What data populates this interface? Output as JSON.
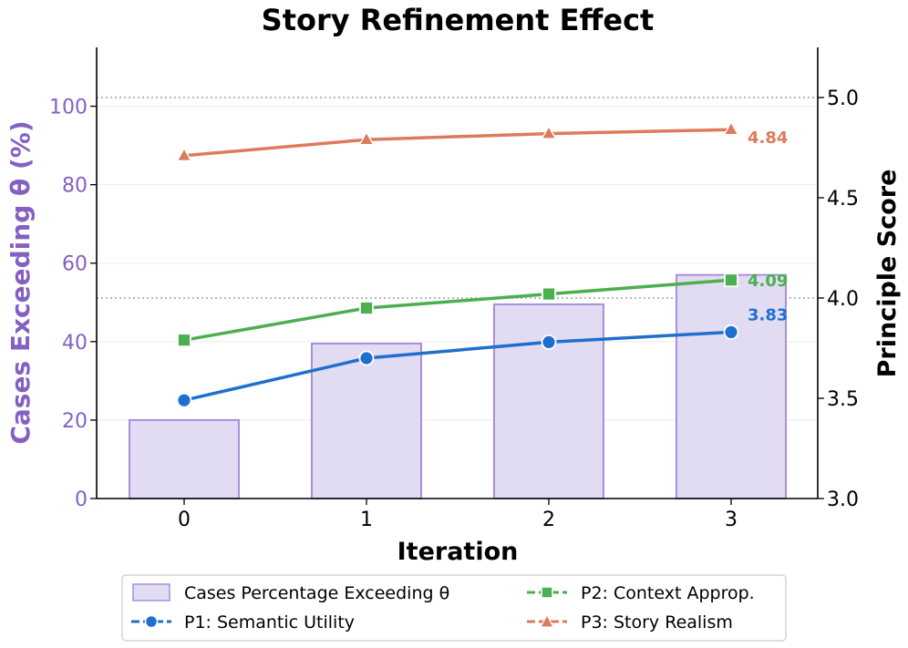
{
  "chart_data": {
    "type": "bar+line",
    "title": "Story Refinement Effect",
    "xlabel": "Iteration",
    "ylabel_left": "Cases Exceeding θ (%)",
    "ylabel_right": "Principle Score",
    "categories": [
      "0",
      "1",
      "2",
      "3"
    ],
    "ylim_left": [
      0,
      115
    ],
    "ylim_right": [
      3.0,
      5.25
    ],
    "left_ticks": [
      0,
      20,
      40,
      60,
      80,
      100
    ],
    "right_ticks": [
      3.0,
      3.5,
      4.0,
      4.5,
      5.0
    ],
    "left_tick_labels": [
      "0",
      "20",
      "40",
      "60",
      "80",
      "100"
    ],
    "right_tick_labels": [
      "3.0",
      "3.5",
      "4.0",
      "4.5",
      "5.0"
    ],
    "reference_lines_right": [
      4.0,
      5.0
    ],
    "bars": {
      "name": "Cases Percentage Exceeding θ",
      "values": [
        20,
        39.5,
        49.5,
        57
      ],
      "color": "#e2dcf3",
      "edge_color": "#a98fd8"
    },
    "series": [
      {
        "name": "P1: Semantic Utility",
        "values": [
          3.49,
          3.7,
          3.78,
          3.83
        ],
        "color": "#1f6fce",
        "marker": "circle",
        "end_label": "3.83"
      },
      {
        "name": "P2: Context Approp.",
        "values": [
          3.79,
          3.95,
          4.02,
          4.09
        ],
        "color": "#4caf50",
        "marker": "square",
        "end_label": "4.09"
      },
      {
        "name": "P3: Story Realism",
        "values": [
          4.71,
          4.79,
          4.82,
          4.84
        ],
        "color": "#dc7b5c",
        "marker": "triangle",
        "end_label": "4.84"
      }
    ],
    "left_axis_color": "#8560c4",
    "legend_position": "bottom-center"
  }
}
